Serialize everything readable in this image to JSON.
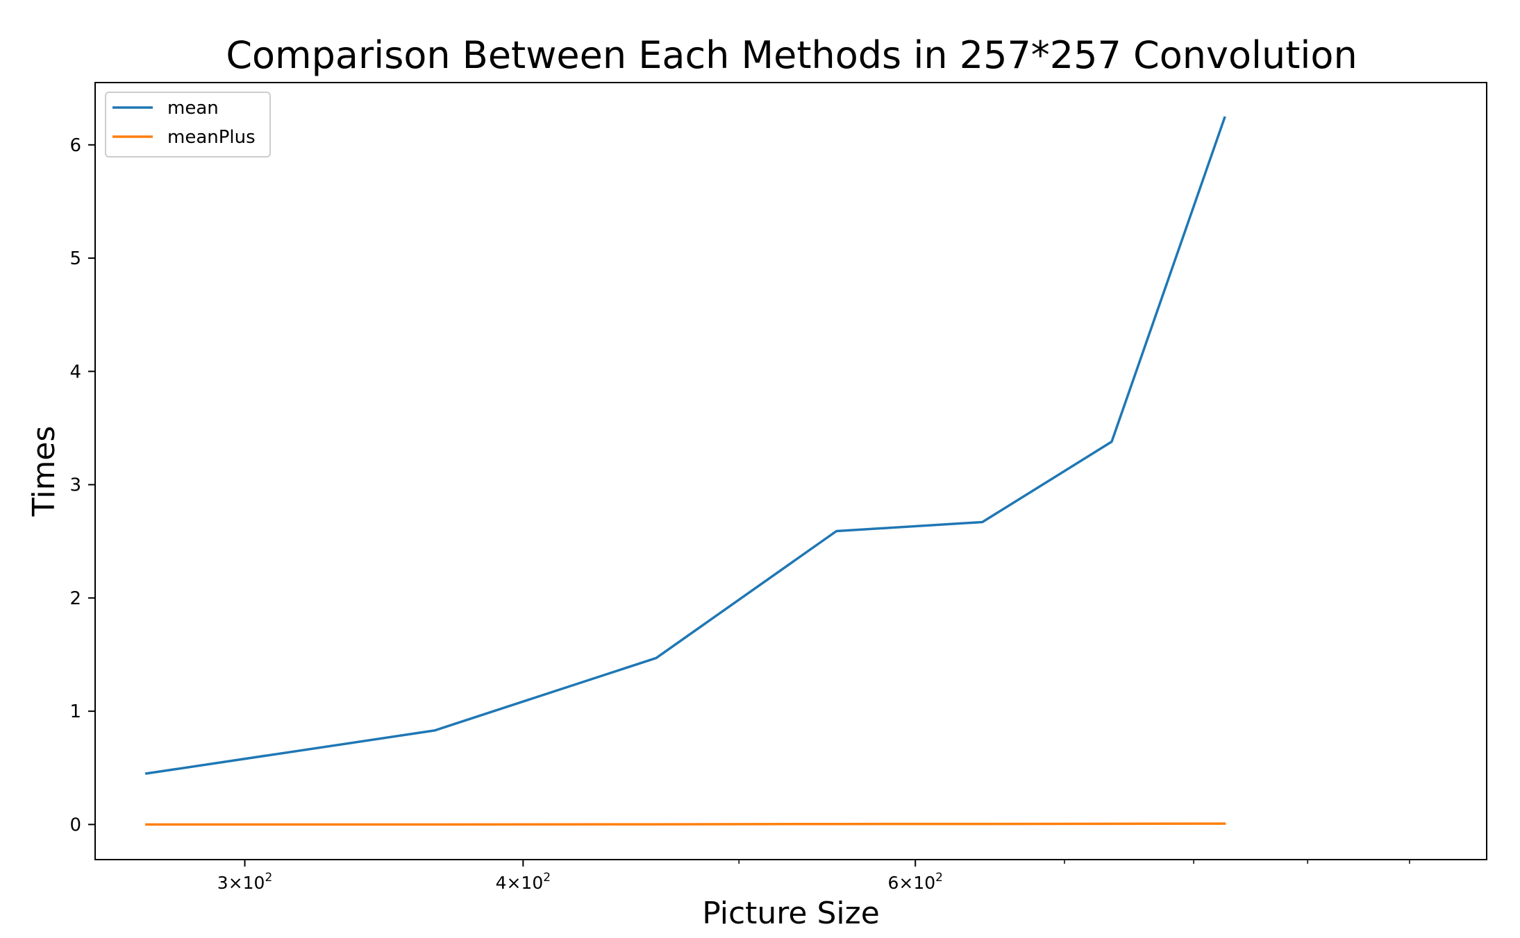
{
  "chart_data": {
    "type": "line",
    "title": "Comparison Between Each Methods in 257*257 Convolution",
    "xlabel": "Picture Size",
    "ylabel": "Times",
    "xscale": "log",
    "xlim": [
      257,
      1083
    ],
    "ylim": [
      -0.31,
      6.55
    ],
    "xticks": [
      {
        "value": 300,
        "base": "3",
        "exp": "2"
      },
      {
        "value": 400,
        "base": "4",
        "exp": "2"
      },
      {
        "value": 600,
        "base": "6",
        "exp": "2"
      }
    ],
    "x_minor_ticks": [
      500,
      700,
      800,
      900,
      1000
    ],
    "yticks": [
      0,
      1,
      2,
      3,
      4,
      5,
      6
    ],
    "x": [
      271,
      365,
      459,
      553,
      643,
      735,
      826
    ],
    "series": [
      {
        "name": "mean",
        "color": "#1f77b4",
        "values": [
          0.45,
          0.83,
          1.47,
          2.59,
          2.67,
          3.38,
          6.24
        ]
      },
      {
        "name": "meanPlus",
        "color": "#ff7f0e",
        "values": [
          0.0,
          0.0,
          0.002,
          0.004,
          0.005,
          0.006,
          0.008
        ]
      }
    ],
    "legend": "top-left",
    "grid": false
  }
}
